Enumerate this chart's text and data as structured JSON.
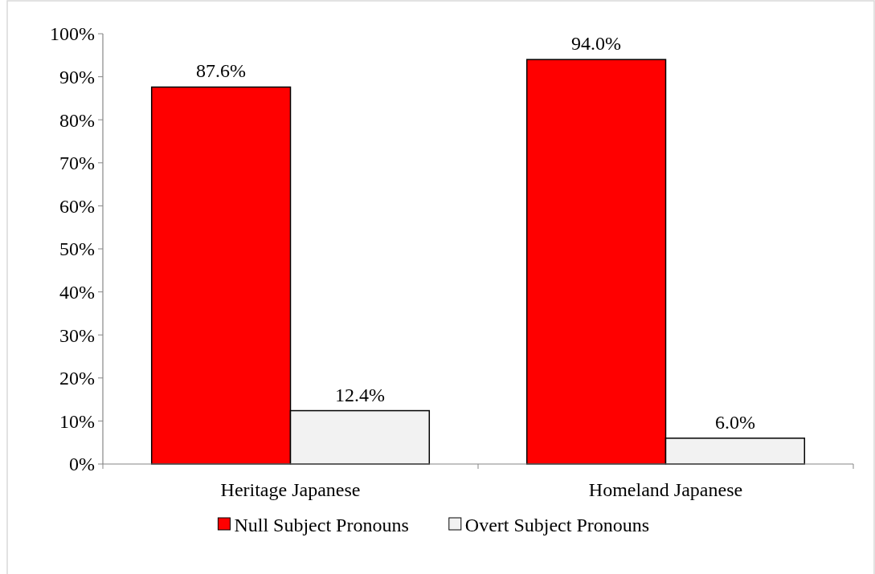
{
  "chart_data": {
    "type": "bar",
    "categories": [
      "Heritage Japanese",
      "Homeland Japanese"
    ],
    "series": [
      {
        "name": "Null Subject Pronouns",
        "color": "#ff0000",
        "values": [
          87.6,
          94.0
        ],
        "value_labels": [
          "87.6%",
          "94.0%"
        ]
      },
      {
        "name": "Overt Subject Pronouns",
        "color": "#f2f2f2",
        "values": [
          12.4,
          6.0
        ],
        "value_labels": [
          "12.4%",
          "6.0%"
        ]
      }
    ],
    "ylim": [
      0,
      100
    ],
    "yticks": [
      {
        "value": 0,
        "label": "0%"
      },
      {
        "value": 10,
        "label": "10%"
      },
      {
        "value": 20,
        "label": "20%"
      },
      {
        "value": 30,
        "label": "30%"
      },
      {
        "value": 40,
        "label": "40%"
      },
      {
        "value": 50,
        "label": "50%"
      },
      {
        "value": 60,
        "label": "60%"
      },
      {
        "value": 70,
        "label": "70%"
      },
      {
        "value": 80,
        "label": "80%"
      },
      {
        "value": 90,
        "label": "90%"
      },
      {
        "value": 100,
        "label": "100%"
      }
    ],
    "legend": "bottom"
  }
}
